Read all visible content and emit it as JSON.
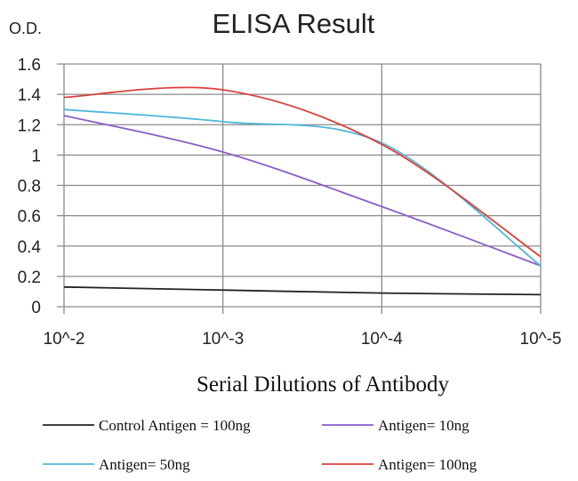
{
  "chart_data": {
    "type": "line",
    "title": "ELISA Result",
    "ylabel": "O.D.",
    "xlabel": "Serial Dilutions of Antibody",
    "categories": [
      "10^-2",
      "10^-3",
      "10^-4",
      "10^-5"
    ],
    "ylim": [
      0,
      1.6
    ],
    "yticks": [
      "0",
      "0.2",
      "0.4",
      "0.6",
      "0.8",
      "1",
      "1.2",
      "1.4",
      "1.6"
    ],
    "grid": true,
    "legend_position": "bottom",
    "series": [
      {
        "name": "Control Antigen = 100ng",
        "color": "#222222",
        "values": [
          0.13,
          0.11,
          0.09,
          0.08
        ]
      },
      {
        "name": "Antigen= 10ng",
        "color": "#8a5ec8",
        "values": [
          1.26,
          1.02,
          0.66,
          0.27
        ]
      },
      {
        "name": "Antigen= 50ng",
        "color": "#4fb8d8",
        "values": [
          1.3,
          1.22,
          1.08,
          0.27
        ]
      },
      {
        "name": "Antigen= 100ng",
        "color": "#d9413a",
        "values": [
          1.38,
          1.43,
          1.07,
          0.33
        ]
      }
    ]
  }
}
